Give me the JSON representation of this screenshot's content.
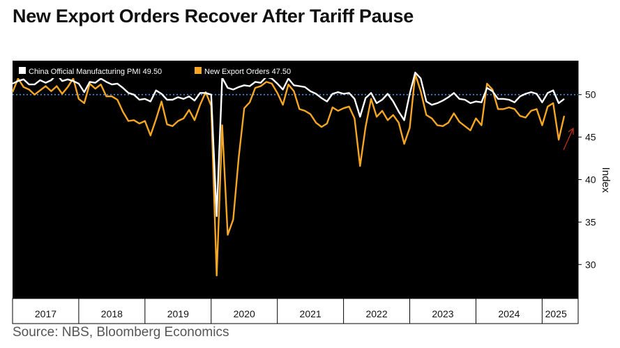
{
  "title": "New Export Orders Recover After Tariff Pause",
  "source": "Source: NBS, Bloomberg Economics",
  "chart_data": {
    "type": "line",
    "start": "2017-01",
    "ylim": [
      26,
      54
    ],
    "yticks": [
      30,
      35,
      40,
      45,
      50
    ],
    "ylabel": "Index",
    "reference_line": 50,
    "years": [
      "2017",
      "2018",
      "2019",
      "2020",
      "2021",
      "2022",
      "2023",
      "2024",
      "2025"
    ],
    "series": [
      {
        "name": "China Official Manufacturing PMI",
        "legend": "China Official Manufacturing PMI 49.50",
        "color": "#ffffff",
        "values": [
          51.3,
          51.6,
          51.8,
          51.2,
          51.2,
          51.7,
          51.4,
          51.7,
          52.4,
          51.6,
          51.8,
          51.6,
          51.3,
          50.3,
          51.5,
          51.4,
          51.9,
          51.5,
          51.2,
          51.3,
          50.8,
          50.2,
          50.0,
          49.4,
          49.5,
          49.2,
          50.5,
          50.1,
          49.4,
          49.4,
          49.7,
          49.5,
          49.8,
          49.3,
          50.2,
          50.2,
          50.0,
          35.7,
          52.0,
          50.8,
          50.6,
          50.9,
          51.1,
          51.0,
          51.5,
          51.4,
          52.1,
          51.9,
          51.3,
          50.6,
          51.9,
          51.1,
          51.0,
          50.9,
          50.4,
          50.1,
          49.6,
          49.2,
          50.1,
          50.3,
          50.1,
          50.2,
          49.5,
          47.4,
          49.6,
          50.2,
          49.0,
          49.4,
          50.1,
          49.2,
          48.0,
          47.0,
          50.1,
          52.6,
          51.9,
          49.2,
          48.8,
          49.0,
          49.3,
          49.7,
          50.2,
          49.5,
          49.4,
          49.0,
          49.2,
          49.1,
          50.8,
          50.4,
          49.5,
          49.5,
          49.4,
          49.1,
          49.8,
          50.1,
          50.3,
          50.1,
          49.1,
          50.2,
          50.5,
          49.0,
          49.5
        ],
        "last_value": 49.5
      },
      {
        "name": "New Export Orders",
        "legend": "New Export Orders 47.50",
        "color": "#f5a623",
        "values": [
          50.3,
          51.9,
          50.9,
          50.6,
          50.0,
          50.5,
          51.0,
          50.4,
          51.0,
          50.1,
          50.9,
          51.9,
          49.5,
          49.0,
          51.3,
          50.7,
          51.2,
          49.8,
          49.8,
          49.4,
          48.0,
          46.9,
          47.0,
          46.6,
          46.9,
          45.2,
          47.1,
          49.2,
          46.5,
          46.3,
          46.9,
          47.2,
          48.2,
          47.0,
          48.8,
          50.3,
          48.7,
          28.7,
          46.4,
          33.5,
          35.3,
          42.6,
          48.4,
          49.1,
          50.8,
          51.0,
          51.5,
          51.3,
          50.2,
          48.8,
          51.2,
          50.4,
          48.3,
          48.1,
          47.7,
          46.7,
          46.2,
          46.6,
          48.5,
          48.1,
          48.4,
          48.6,
          47.2,
          41.6,
          46.2,
          49.5,
          47.4,
          48.1,
          47.0,
          47.6,
          46.7,
          44.2,
          46.1,
          52.4,
          50.4,
          47.6,
          47.2,
          46.4,
          46.3,
          46.7,
          47.8,
          46.8,
          46.3,
          45.8,
          47.2,
          46.4,
          51.3,
          50.6,
          48.3,
          48.3,
          48.5,
          48.3,
          47.5,
          47.3,
          48.1,
          48.3,
          46.4,
          48.6,
          49.0,
          44.7,
          47.5
        ],
        "last_value": 47.5
      }
    ]
  }
}
